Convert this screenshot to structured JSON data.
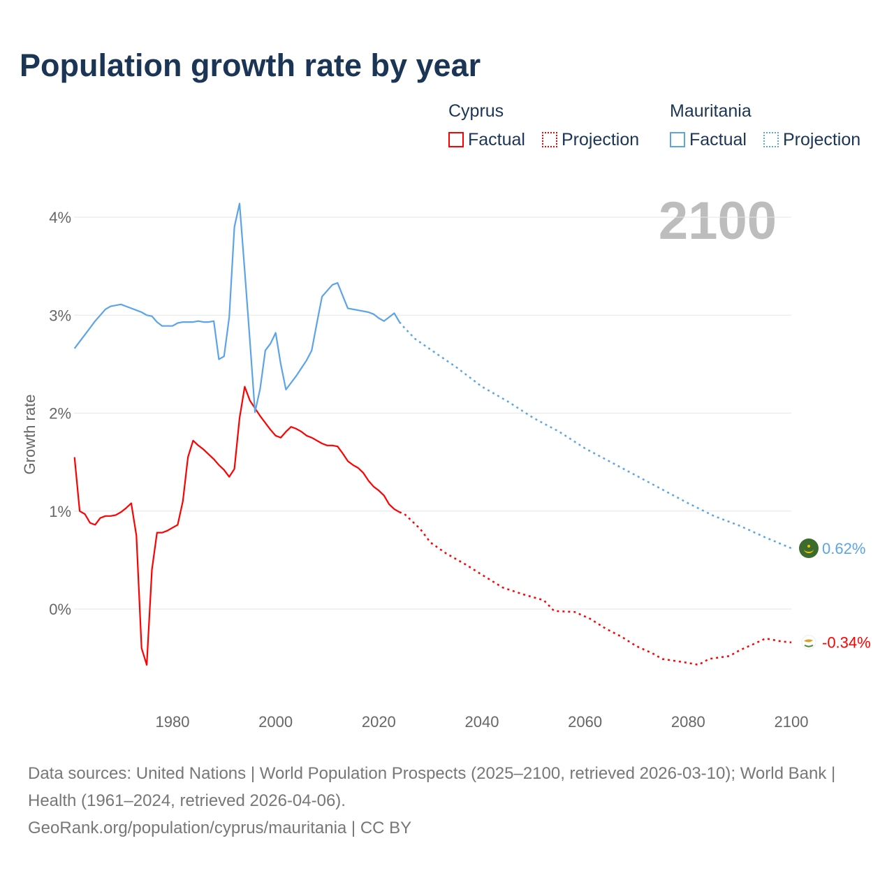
{
  "chart_data": {
    "type": "line",
    "title": "Population growth rate by year",
    "ylabel": "Growth rate",
    "xlabel": "",
    "xlim": [
      1961,
      2100
    ],
    "ylim": [
      -1,
      4.5
    ],
    "xticks": [
      1980,
      2000,
      2020,
      2040,
      2060,
      2080,
      2100
    ],
    "yticks": [
      0,
      1,
      2,
      3,
      4
    ],
    "ytick_labels": [
      "0%",
      "1%",
      "2%",
      "3%",
      "4%"
    ],
    "year_label": "2100",
    "grid": true,
    "legend": {
      "factual": "Factual",
      "projection": "Projection",
      "placement": "top-right"
    },
    "series": [
      {
        "name": "Cyprus",
        "color": "#ff0000",
        "end_label": "-0.34%",
        "flag": "cyprus-flag",
        "factual": {
          "x": [
            1961,
            1962,
            1963,
            1964,
            1965,
            1966,
            1967,
            1968,
            1969,
            1970,
            1971,
            1972,
            1973,
            1974,
            1975,
            1976,
            1977,
            1978,
            1979,
            1980,
            1981,
            1982,
            1983,
            1984,
            1985,
            1986,
            1987,
            1988,
            1989,
            1990,
            1991,
            1992,
            1993,
            1994,
            1995,
            1996,
            1997,
            1998,
            1999,
            2000,
            2001,
            2002,
            2003,
            2004,
            2005,
            2006,
            2007,
            2008,
            2009,
            2010,
            2011,
            2012,
            2013,
            2014,
            2015,
            2016,
            2017,
            2018,
            2019,
            2020,
            2021,
            2022,
            2023,
            2024
          ],
          "y": [
            1.55,
            1.0,
            0.97,
            0.88,
            0.86,
            0.93,
            0.95,
            0.95,
            0.96,
            0.99,
            1.03,
            1.08,
            0.75,
            -0.4,
            -0.57,
            0.4,
            0.78,
            0.78,
            0.8,
            0.83,
            0.86,
            1.1,
            1.55,
            1.72,
            1.67,
            1.63,
            1.58,
            1.53,
            1.47,
            1.42,
            1.35,
            1.43,
            1.95,
            2.27,
            2.13,
            2.05,
            1.97,
            1.9,
            1.83,
            1.77,
            1.75,
            1.81,
            1.86,
            1.84,
            1.81,
            1.77,
            1.75,
            1.72,
            1.69,
            1.67,
            1.67,
            1.66,
            1.59,
            1.51,
            1.47,
            1.44,
            1.39,
            1.31,
            1.25,
            1.21,
            1.16,
            1.07,
            1.02,
            0.99
          ]
        },
        "projection": {
          "x": [
            2024,
            2025,
            2028,
            2030,
            2033,
            2037,
            2040,
            2044,
            2048,
            2052,
            2054,
            2058,
            2061,
            2064,
            2067,
            2070,
            2073,
            2075,
            2080,
            2082,
            2084,
            2088,
            2090,
            2093,
            2095,
            2098,
            2100
          ],
          "y": [
            0.99,
            0.97,
            0.82,
            0.68,
            0.57,
            0.45,
            0.35,
            0.22,
            0.15,
            0.09,
            -0.02,
            -0.03,
            -0.1,
            -0.2,
            -0.28,
            -0.38,
            -0.45,
            -0.51,
            -0.55,
            -0.57,
            -0.51,
            -0.48,
            -0.42,
            -0.35,
            -0.3,
            -0.33,
            -0.34
          ]
        }
      },
      {
        "name": "Mauritania",
        "color": "#5ba4e8",
        "end_label": "0.62%",
        "flag": "mauritania-flag",
        "factual": {
          "x": [
            1961,
            1962,
            1963,
            1964,
            1965,
            1966,
            1967,
            1968,
            1969,
            1970,
            1971,
            1972,
            1973,
            1974,
            1975,
            1976,
            1977,
            1978,
            1979,
            1980,
            1981,
            1982,
            1983,
            1984,
            1985,
            1986,
            1987,
            1988,
            1989,
            1990,
            1991,
            1992,
            1993,
            1994,
            1995,
            1996,
            1997,
            1998,
            1999,
            2000,
            2001,
            2002,
            2003,
            2004,
            2005,
            2006,
            2007,
            2008,
            2009,
            2010,
            2011,
            2012,
            2013,
            2014,
            2015,
            2016,
            2017,
            2018,
            2019,
            2020,
            2021,
            2022,
            2023,
            2024
          ],
          "y": [
            2.66,
            2.73,
            2.8,
            2.87,
            2.94,
            3.0,
            3.06,
            3.09,
            3.1,
            3.11,
            3.09,
            3.07,
            3.05,
            3.03,
            3.0,
            2.99,
            2.93,
            2.89,
            2.89,
            2.89,
            2.92,
            2.93,
            2.93,
            2.93,
            2.94,
            2.93,
            2.93,
            2.94,
            2.55,
            2.58,
            2.98,
            3.9,
            4.14,
            3.45,
            2.75,
            2.01,
            2.25,
            2.64,
            2.71,
            2.82,
            2.5,
            2.24,
            2.31,
            2.38,
            2.46,
            2.54,
            2.64,
            2.92,
            3.19,
            3.25,
            3.31,
            3.33,
            3.2,
            3.07,
            3.06,
            3.05,
            3.04,
            3.03,
            3.01,
            2.97,
            2.94,
            2.98,
            3.02,
            2.93
          ]
        },
        "projection": {
          "x": [
            2024,
            2025,
            2027,
            2030,
            2035,
            2040,
            2045,
            2050,
            2055,
            2060,
            2065,
            2070,
            2075,
            2080,
            2085,
            2090,
            2095,
            2100
          ],
          "y": [
            2.93,
            2.87,
            2.76,
            2.65,
            2.47,
            2.27,
            2.12,
            1.95,
            1.81,
            1.64,
            1.5,
            1.36,
            1.22,
            1.08,
            0.95,
            0.85,
            0.73,
            0.62
          ]
        }
      }
    ]
  },
  "footer": {
    "sources": "Data sources: United Nations | World Population Prospects (2025–2100, retrieved 2026-03-10); World Bank | Health (1961–2024, retrieved 2026-04-06).",
    "attribution": "GeoRank.org/population/cyprus/mauritania | CC BY"
  }
}
